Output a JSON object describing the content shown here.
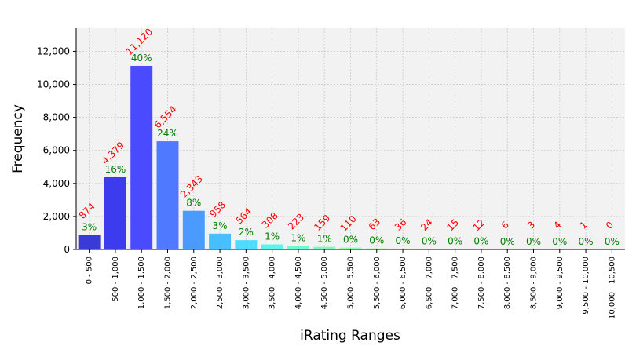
{
  "chart_data": {
    "type": "bar",
    "xlabel": "iRating Ranges",
    "ylabel": "Frequency",
    "ylim": [
      0,
      13400
    ],
    "yticks": [
      0,
      2000,
      4000,
      6000,
      8000,
      10000,
      12000
    ],
    "ytick_labels": [
      "0",
      "2,000",
      "4,000",
      "6,000",
      "8,000",
      "10,000",
      "12,000"
    ],
    "grid": true,
    "categories": [
      "0 - 500",
      "500 - 1,000",
      "1,000 - 1,500",
      "1,500 - 2,000",
      "2,000 - 2,500",
      "2,500 - 3,000",
      "3,000 - 3,500",
      "3,500 - 4,000",
      "4,000 - 4,500",
      "4,500 - 5,000",
      "5,000 - 5,500",
      "5,500 - 6,000",
      "6,000 - 6,500",
      "6,500 - 7,000",
      "7,000 - 7,500",
      "7,500 - 8,000",
      "8,000 - 8,500",
      "8,500 - 9,000",
      "9,000 - 9,500",
      "9,500 - 10,000",
      "10,000 - 10,500"
    ],
    "values": [
      874,
      4379,
      11120,
      6554,
      2343,
      958,
      564,
      308,
      223,
      159,
      110,
      63,
      36,
      24,
      15,
      12,
      6,
      3,
      4,
      1,
      0
    ],
    "value_labels": [
      "874",
      "4,379",
      "11,120",
      "6,554",
      "2,343",
      "958",
      "564",
      "308",
      "223",
      "159",
      "110",
      "63",
      "36",
      "24",
      "15",
      "12",
      "6",
      "3",
      "4",
      "1",
      "0"
    ],
    "percent_labels": [
      "3%",
      "16%",
      "40%",
      "24%",
      "8%",
      "3%",
      "2%",
      "1%",
      "1%",
      "1%",
      "0%",
      "0%",
      "0%",
      "0%",
      "0%",
      "0%",
      "0%",
      "0%",
      "0%",
      "0%",
      "0%"
    ],
    "bar_colors": [
      "#3a3ad8",
      "#3c3cee",
      "#4a4aff",
      "#4f79ff",
      "#4b9bff",
      "#47bfff",
      "#4ddcff",
      "#5af5ea",
      "#6ef7d0",
      "#7ff8c0",
      "#93f9ad",
      "#a6f99a",
      "#b8fa88",
      "#c9fa77",
      "#d8fb68",
      "#e5fb5a",
      "#eefb50",
      "#f3f949",
      "#f6f446",
      "#f8ee44",
      "#f9e843"
    ],
    "value_label_color": "#ff0000",
    "percent_label_color": "#008000",
    "plot_background": "#f2f2f2"
  }
}
